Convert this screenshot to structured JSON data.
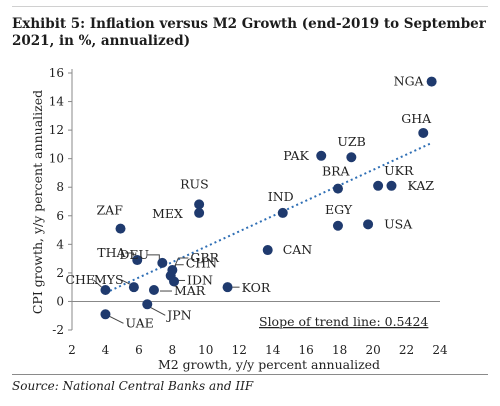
{
  "header": {
    "title": "Exhibit 5:  Inflation versus M2 Growth (end-2019 to September 2021, in %, annualized)"
  },
  "footer": {
    "source": "Source: National Central Banks and IIF"
  },
  "chart_data": {
    "type": "scatter",
    "xlabel": "M2 growth, y/y percent annualized",
    "ylabel": "CPI growth, y/y percent annualized",
    "xlim": [
      2,
      24
    ],
    "ylim": [
      -2,
      16
    ],
    "xticks": [
      2,
      4,
      6,
      8,
      10,
      12,
      14,
      16,
      18,
      20,
      22,
      24
    ],
    "yticks": [
      -2,
      0,
      2,
      4,
      6,
      8,
      10,
      12,
      14,
      16
    ],
    "grid": false,
    "point_color": "#1f3a6e",
    "points": [
      {
        "label": "NGA",
        "x": 23.5,
        "y": 15.4
      },
      {
        "label": "GHA",
        "x": 23.0,
        "y": 11.8
      },
      {
        "label": "UZB",
        "x": 18.7,
        "y": 10.1
      },
      {
        "label": "PAK",
        "x": 16.9,
        "y": 10.2
      },
      {
        "label": "BRA",
        "x": 17.9,
        "y": 7.9
      },
      {
        "label": "UKR",
        "x": 20.3,
        "y": 8.1
      },
      {
        "label": "KAZ",
        "x": 21.1,
        "y": 8.1
      },
      {
        "label": "EGY",
        "x": 17.9,
        "y": 5.3
      },
      {
        "label": "USA",
        "x": 19.7,
        "y": 5.4
      },
      {
        "label": "IND",
        "x": 14.6,
        "y": 6.2
      },
      {
        "label": "CAN",
        "x": 13.7,
        "y": 3.6
      },
      {
        "label": "RUS",
        "x": 9.6,
        "y": 6.8
      },
      {
        "label": "MEX",
        "x": 9.6,
        "y": 6.2
      },
      {
        "label": "ZAF",
        "x": 4.9,
        "y": 5.1
      },
      {
        "label": "DEU",
        "x": 7.4,
        "y": 2.7
      },
      {
        "label": "GBR",
        "x": 8.0,
        "y": 2.2
      },
      {
        "label": "CHN",
        "x": 7.9,
        "y": 1.8
      },
      {
        "label": "IDN",
        "x": 8.1,
        "y": 1.4
      },
      {
        "label": "MAR",
        "x": 6.9,
        "y": 0.8
      },
      {
        "label": "KOR",
        "x": 11.3,
        "y": 1.0
      },
      {
        "label": "THA",
        "x": 5.9,
        "y": 2.9
      },
      {
        "label": "MYS",
        "x": 5.7,
        "y": 1.0
      },
      {
        "label": "CHE",
        "x": 4.0,
        "y": 0.8
      },
      {
        "label": "JPN",
        "x": 6.5,
        "y": -0.2
      },
      {
        "label": "UAE",
        "x": 4.0,
        "y": -0.9
      }
    ],
    "trendline": {
      "x": [
        4,
        23.5
      ],
      "y": [
        0.6,
        11.1
      ],
      "style": "dotted",
      "color": "#2f6fb5"
    },
    "annotation": "Slope of trend line: 0.5424"
  }
}
